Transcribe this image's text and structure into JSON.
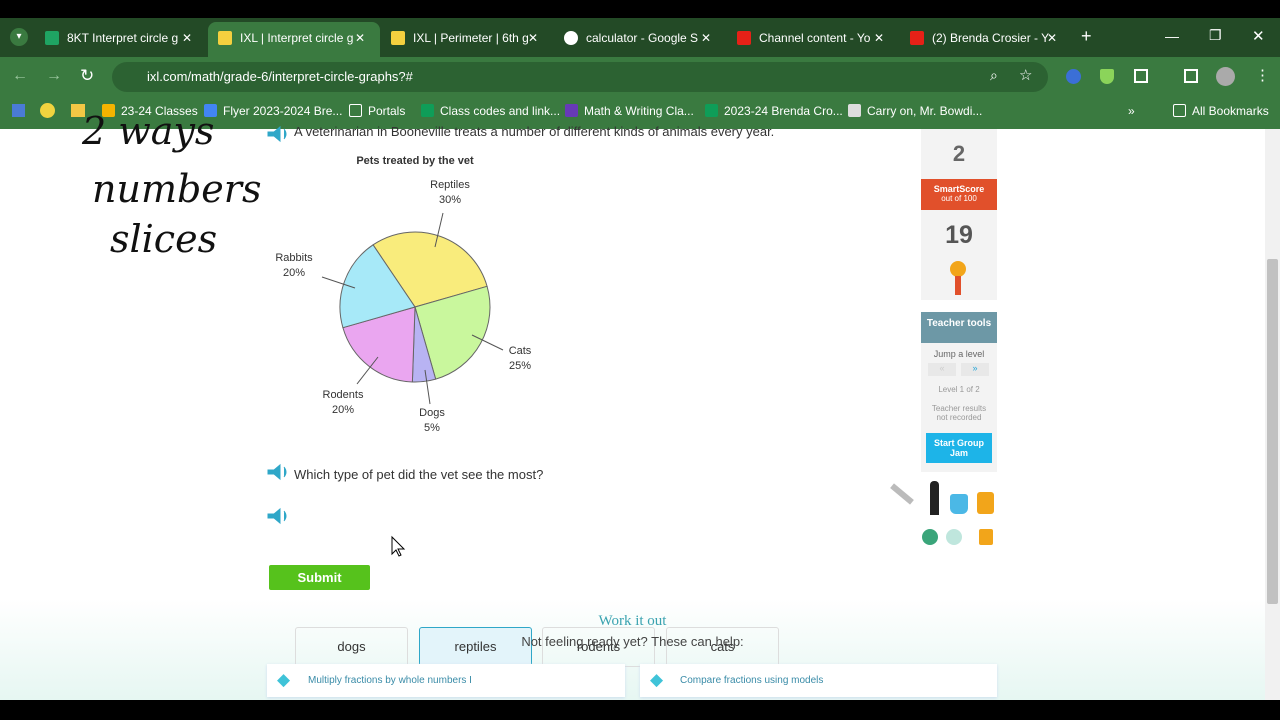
{
  "browser": {
    "tabs": [
      "8KT Interpret circle g",
      "IXL | Interpret circle g",
      "IXL | Perimeter | 6th g",
      "calculator - Google S",
      "Channel content - Yo",
      "(2) Brenda Crosier - Y"
    ],
    "url": "ixl.com/math/grade-6/interpret-circle-graphs?#",
    "bookmarks": [
      "23-24 Classes",
      "Flyer 2023-2024 Bre...",
      "Portals",
      "Class codes and link...",
      "Math & Writing Cla...",
      "2023-24 Brenda Cro...",
      "Carry on, Mr. Bowdi..."
    ],
    "all_bookmarks": "All Bookmarks"
  },
  "handwriting": [
    "2 ways",
    "numbers",
    "slices"
  ],
  "question": {
    "intro": "A veterinarian in Booneville treats a number of different kinds of animals every year.",
    "prompt": "Which type of pet did the vet see the most?",
    "choices": [
      "dogs",
      "reptiles",
      "rodents",
      "cats"
    ],
    "submit": "Submit"
  },
  "chart_data": {
    "type": "pie",
    "title": "Pets treated by the vet",
    "categories": [
      "Reptiles",
      "Cats",
      "Dogs",
      "Rodents",
      "Rabbits"
    ],
    "values": [
      30,
      25,
      5,
      20,
      20
    ],
    "value_labels": [
      "30%",
      "25%",
      "5%",
      "20%",
      "20%"
    ],
    "colors": [
      "#f9ec7c",
      "#c9f79d",
      "#b8b3f3",
      "#eaa6f0",
      "#a7e9f8"
    ]
  },
  "sidebar": {
    "answered": 2,
    "smartscore_label": "SmartScore",
    "smartscore_sub": "out of 100",
    "smartscore": 19,
    "teacher_tools": "Teacher tools",
    "jump": "Jump a level",
    "level": "Level 1 of 2",
    "results": "Teacher results not recorded",
    "group_jam": "Start Group Jam"
  },
  "help": {
    "title": "Work it out",
    "subtitle": "Not feeling ready yet? These can help:",
    "skills": [
      "Multiply fractions by whole numbers I",
      "Compare fractions using models"
    ]
  }
}
